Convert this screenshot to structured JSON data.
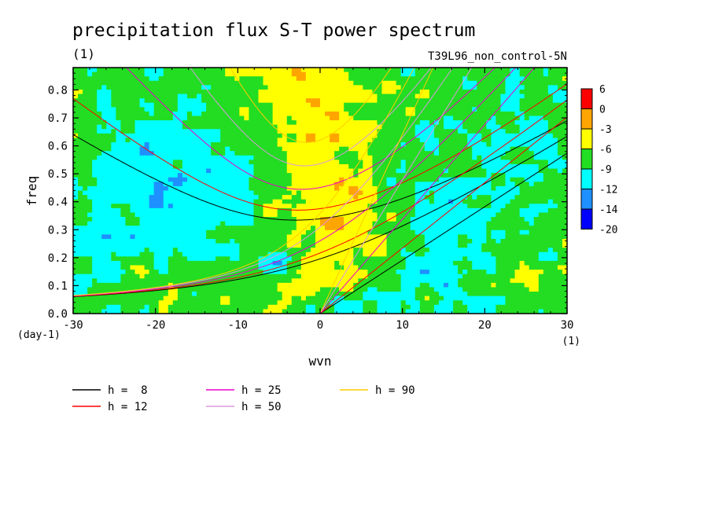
{
  "chart_data": {
    "type": "heatmap",
    "title": "precipitation flux S-T power spectrum",
    "subtitle_left": "(1)",
    "subtitle_right": "T39L96_non_control-5N",
    "xlabel": "wvn",
    "ylabel": "freq",
    "x_unit": "(1)",
    "y_unit": "(day-1)",
    "xlim": [
      -30,
      30
    ],
    "ylim": [
      0,
      0.88
    ],
    "x_ticks": [
      -30,
      -20,
      -10,
      0,
      10,
      20,
      30
    ],
    "x_tick_labels": [
      "-30",
      "-20",
      "-10",
      "0",
      "10",
      "20",
      "30"
    ],
    "y_ticks": [
      0.0,
      0.1,
      0.2,
      0.3,
      0.4,
      0.5,
      0.6,
      0.7,
      0.8
    ],
    "y_tick_labels": [
      "0.0",
      "0.1",
      "0.2",
      "0.3",
      "0.4",
      "0.5",
      "0.6",
      "0.7",
      "0.8"
    ],
    "colorbar": {
      "levels": [
        "6",
        "0",
        "-3",
        "-6",
        "-9",
        "-12",
        "-14",
        "-20"
      ],
      "colors": [
        "#ff0000",
        "#ffa500",
        "#ffff00",
        "#22dd22",
        "#00ffff",
        "#1e90ff",
        "#0000ff"
      ]
    },
    "dispersion_curves": [
      {
        "label": "h =  8",
        "h": 8,
        "color": "#000000"
      },
      {
        "label": "h = 12",
        "h": 12,
        "color": "#ff0000"
      },
      {
        "label": "h = 25",
        "h": 25,
        "color": "#ee00cc"
      },
      {
        "label": "h = 50",
        "h": 50,
        "color": "#dd99dd"
      },
      {
        "label": "h = 90",
        "h": 90,
        "color": "#ffcc00"
      }
    ],
    "background_value": -8,
    "features": [
      {
        "x": 0,
        "y": 0.55,
        "sx": 4.5,
        "sy": 0.35,
        "v": 3.8
      },
      {
        "x": 5,
        "y": 0.3,
        "sx": 3.5,
        "sy": 0.12,
        "v": 2.2
      },
      {
        "x": 3,
        "y": 0.12,
        "sx": 4.0,
        "sy": 0.05,
        "v": 1.8
      },
      {
        "x": -3,
        "y": 0.82,
        "sx": 6.0,
        "sy": 0.08,
        "v": 2.6
      },
      {
        "x": -24,
        "y": 0.08,
        "sx": 6.0,
        "sy": 0.05,
        "v": 2.0
      },
      {
        "x": 24,
        "y": 0.12,
        "sx": 5.0,
        "sy": 0.06,
        "v": 1.6
      },
      {
        "x": -22,
        "y": 0.38,
        "sx": 6.0,
        "sy": 0.12,
        "v": -3.0
      },
      {
        "x": -12,
        "y": 0.45,
        "sx": 5.0,
        "sy": 0.1,
        "v": -2.4
      },
      {
        "x": 12,
        "y": 0.15,
        "sx": 6.0,
        "sy": 0.1,
        "v": -2.6
      },
      {
        "x": 2,
        "y": 0.04,
        "sx": 2.0,
        "sy": 0.03,
        "v": -5.0
      },
      {
        "x": -6,
        "y": 0.18,
        "sx": 1.8,
        "sy": 0.03,
        "v": -3.0
      },
      {
        "x": -28,
        "y": 0.18,
        "sx": 3.0,
        "sy": 0.08,
        "v": -2.2
      },
      {
        "x": 22,
        "y": 0.55,
        "sx": 6.0,
        "sy": 0.12,
        "v": -1.6
      },
      {
        "x": -18,
        "y": 0.65,
        "sx": 5.0,
        "sy": 0.1,
        "v": -1.8
      },
      {
        "x": 15,
        "y": 0.38,
        "sx": 4.0,
        "sy": 0.08,
        "v": -1.6
      }
    ]
  }
}
